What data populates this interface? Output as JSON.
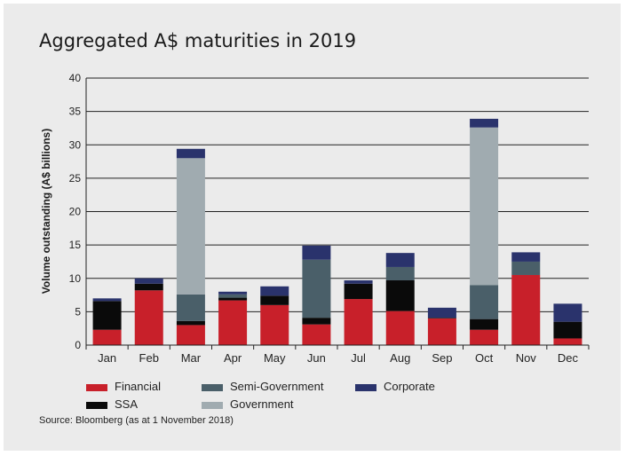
{
  "chart_data": {
    "type": "bar",
    "stacked": true,
    "title": "Aggregated A$ maturities in 2019",
    "ylabel": "Volume outstanding (A$ billions)",
    "xlabel": "",
    "ylim": [
      0,
      40
    ],
    "yticks": [
      0,
      5,
      10,
      15,
      20,
      25,
      30,
      35,
      40
    ],
    "grid": true,
    "legend_position": "bottom",
    "categories": [
      "Jan",
      "Feb",
      "Mar",
      "Apr",
      "May",
      "Jun",
      "Jul",
      "Aug",
      "Sep",
      "Oct",
      "Nov",
      "Dec"
    ],
    "series": [
      {
        "name": "Financial",
        "color": "#c8202a",
        "values": [
          2.3,
          8.2,
          3.0,
          6.7,
          6.0,
          3.1,
          6.9,
          5.1,
          4.0,
          2.3,
          10.5,
          1.0
        ]
      },
      {
        "name": "SSA",
        "color": "#0a0a0a",
        "values": [
          4.3,
          1.0,
          0.6,
          0.4,
          1.4,
          1.0,
          2.3,
          4.6,
          0.1,
          1.6,
          0.0,
          2.5
        ]
      },
      {
        "name": "Semi-Government",
        "color": "#4a5f69",
        "values": [
          0.0,
          0.0,
          4.0,
          0.5,
          0.0,
          8.7,
          0.0,
          2.0,
          0.0,
          5.1,
          2.0,
          0.0
        ]
      },
      {
        "name": "Government",
        "color": "#a0abb0",
        "values": [
          0.0,
          0.0,
          20.4,
          0.0,
          0.0,
          0.0,
          0.0,
          0.0,
          0.0,
          23.6,
          0.0,
          0.0
        ]
      },
      {
        "name": "Corporate",
        "color": "#2a336c",
        "values": [
          0.4,
          0.8,
          1.4,
          0.4,
          1.4,
          2.1,
          0.5,
          2.1,
          1.5,
          1.3,
          1.4,
          2.7
        ]
      }
    ]
  },
  "legend_order": [
    "Financial",
    "Semi-Government",
    "Corporate",
    "SSA",
    "Government"
  ],
  "source": "Source: Bloomberg (as at 1 November 2018)"
}
